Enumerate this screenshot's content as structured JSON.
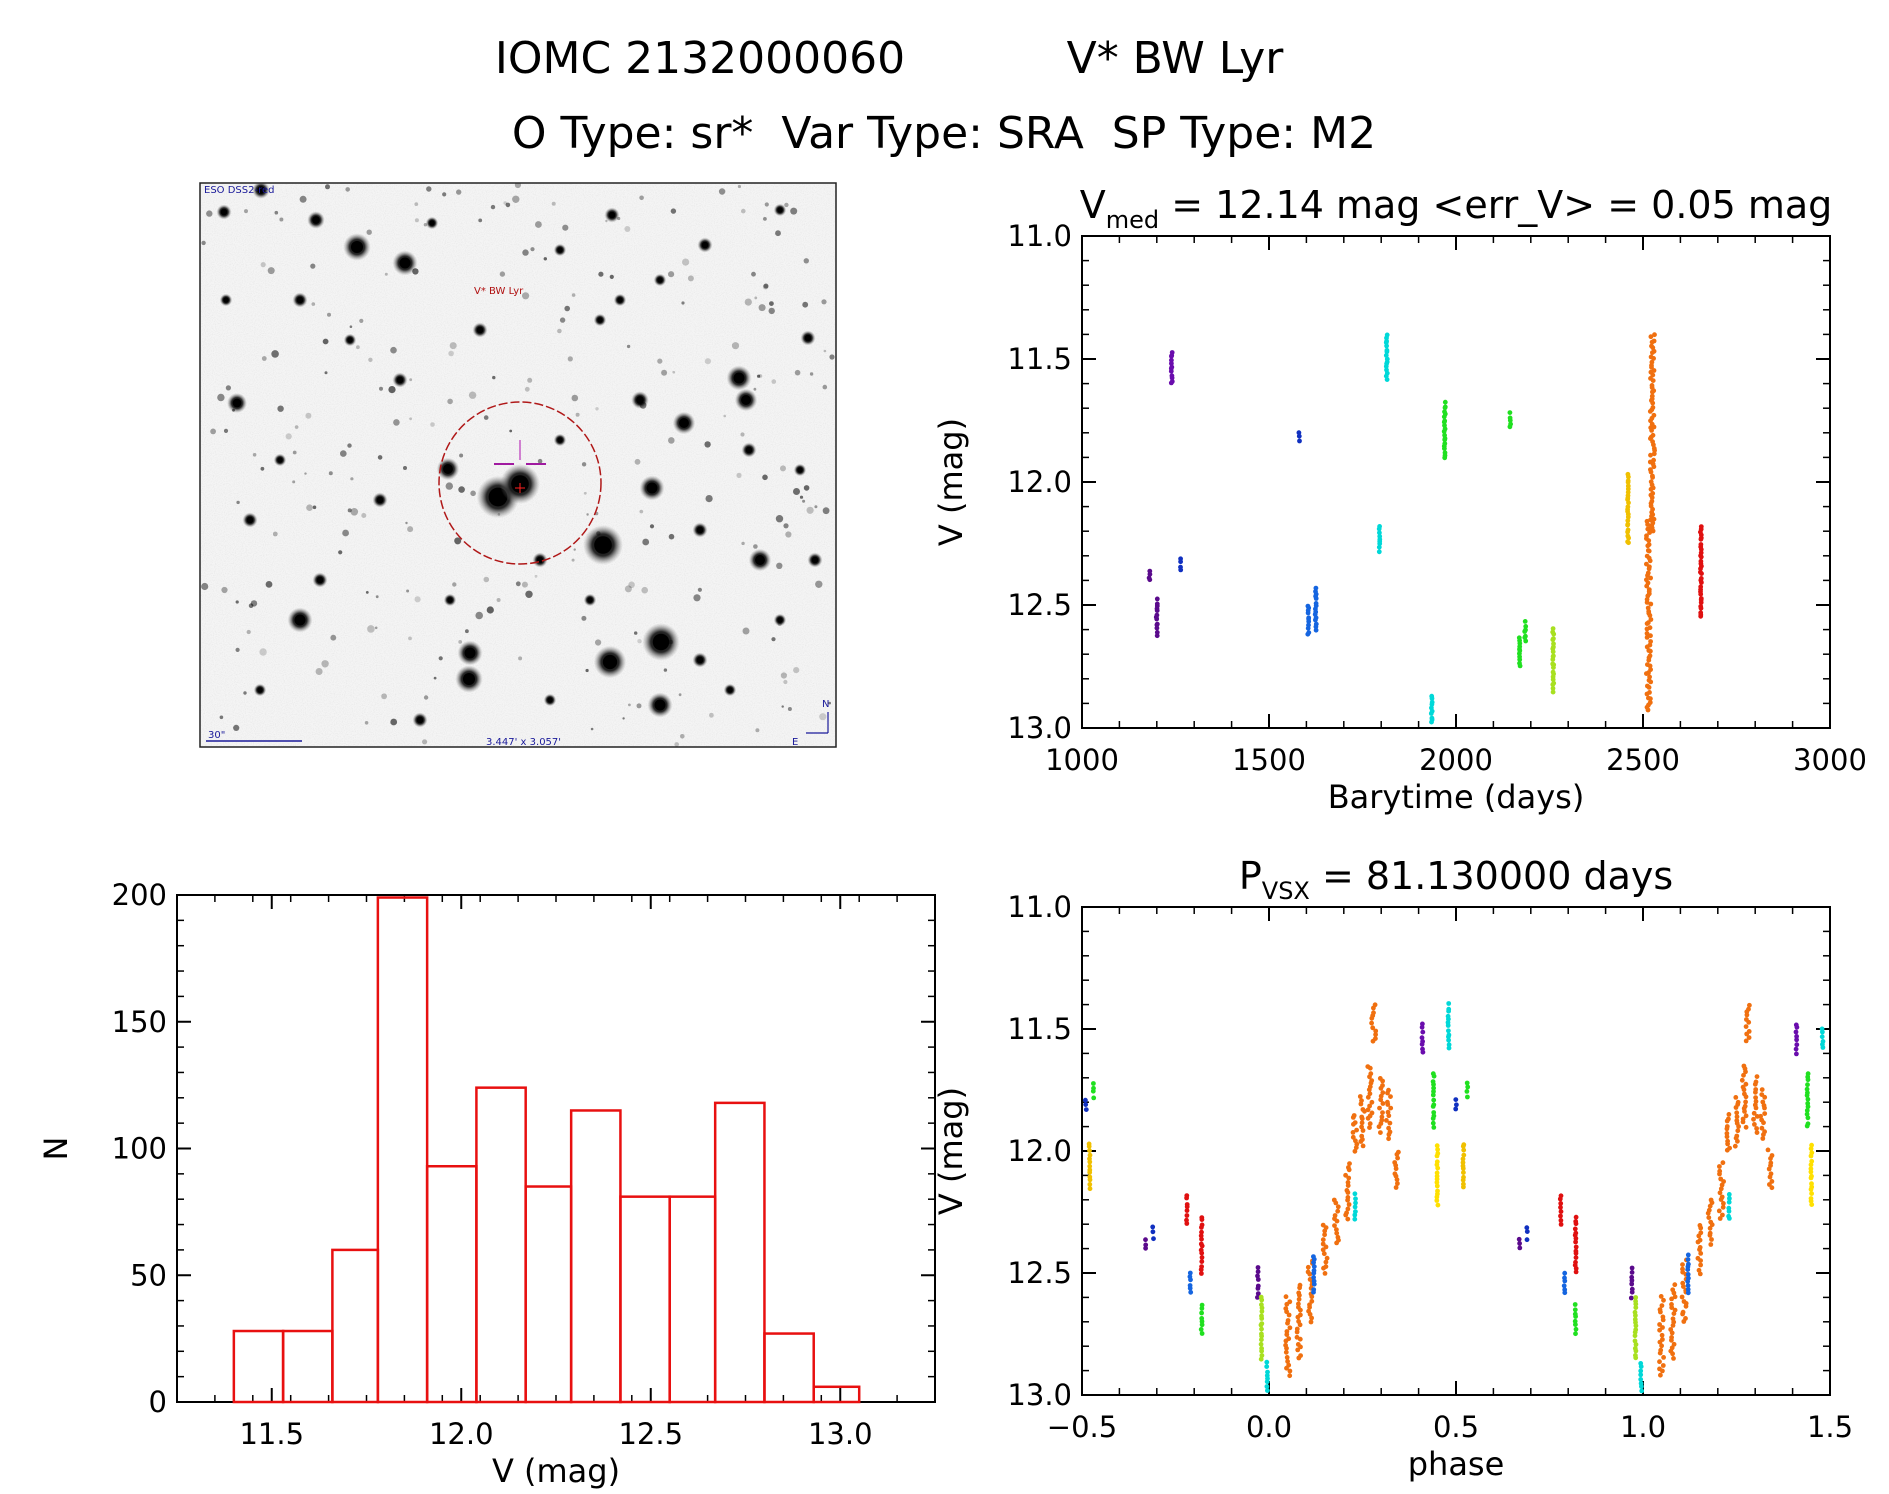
{
  "header": {
    "line1_left": "IOMC 2132000060",
    "line1_right": "V* BW Lyr",
    "line2": "O Type: sr*  Var Type: SRA  SP Type: M2"
  },
  "image_panel": {
    "survey_label": "ESO DSS2-red",
    "target_label": "V* BW Lyr",
    "scale_label": "30\"",
    "size_label": "3.447' x 3.057'",
    "north_label": "N",
    "east_label": "E"
  },
  "colors": {
    "purple": "#5a0a8c",
    "violet": "#6a0dad",
    "blue": "#1565e0",
    "darkblue": "#1030c0",
    "cyan": "#00d8d8",
    "green": "#20e020",
    "yellowgreen": "#a8e020",
    "yellow": "#ffe000",
    "gold": "#f0c000",
    "orange": "#f07010",
    "red": "#e01010",
    "hist": "#e81010"
  },
  "chart_data": [
    {
      "id": "lightcurve",
      "type": "scatter",
      "title_main": "V",
      "title_sub": "med",
      "title_rest": "= 12.14 mag <err_V> = 0.05 mag",
      "xlabel": "Barytime (days)",
      "ylabel": "V (mag)",
      "xlim": [
        1000,
        3000
      ],
      "ylim": [
        11.0,
        13.0
      ],
      "y_inverted": true,
      "x_ticks": [
        "1000",
        "1500",
        "2000",
        "2500",
        "3000"
      ],
      "y_ticks": [
        "11.0",
        "11.5",
        "12.0",
        "12.5",
        "13.0"
      ],
      "groups": [
        {
          "color": "purple",
          "x": 1180,
          "y": [
            12.36,
            12.4
          ]
        },
        {
          "color": "purple",
          "x": 1200,
          "y": [
            12.48,
            12.62
          ]
        },
        {
          "color": "violet",
          "x": 1240,
          "y": [
            11.47,
            11.6
          ]
        },
        {
          "color": "darkblue",
          "x": 1265,
          "y": [
            12.31,
            12.36
          ]
        },
        {
          "color": "darkblue",
          "x": 1580,
          "y": [
            11.8,
            11.83
          ]
        },
        {
          "color": "blue",
          "x": 1605,
          "y": [
            12.5,
            12.62
          ]
        },
        {
          "color": "blue",
          "x": 1625,
          "y": [
            12.43,
            12.6
          ]
        },
        {
          "color": "cyan",
          "x": 1795,
          "y": [
            12.18,
            12.28
          ]
        },
        {
          "color": "cyan",
          "x": 1815,
          "y": [
            11.4,
            11.58
          ]
        },
        {
          "color": "cyan",
          "x": 1935,
          "y": [
            12.87,
            12.98
          ]
        },
        {
          "color": "green",
          "x": 1970,
          "y": [
            11.68,
            11.9
          ]
        },
        {
          "color": "green",
          "x": 2145,
          "y": [
            11.72,
            11.78
          ]
        },
        {
          "color": "green",
          "x": 2170,
          "y": [
            12.63,
            12.75
          ]
        },
        {
          "color": "green",
          "x": 2185,
          "y": [
            12.57,
            12.65
          ]
        },
        {
          "color": "yellowgreen",
          "x": 2260,
          "y": [
            12.6,
            12.85
          ]
        },
        {
          "color": "gold",
          "x": 2460,
          "y": [
            11.97,
            12.25
          ]
        },
        {
          "color": "orange",
          "x": 2515,
          "y": [
            12.15,
            12.93
          ]
        },
        {
          "color": "orange",
          "x": 2525,
          "y": [
            11.4,
            12.2
          ]
        },
        {
          "color": "red",
          "x": 2655,
          "y": [
            12.18,
            12.55
          ]
        }
      ]
    },
    {
      "id": "histogram",
      "type": "bar",
      "xlabel": "V (mag)",
      "ylabel": "N",
      "xlim": [
        11.25,
        13.25
      ],
      "ylim": [
        0,
        200
      ],
      "x_ticks": [
        "11.5",
        "12.0",
        "12.5",
        "13.0"
      ],
      "y_ticks": [
        "0",
        "50",
        "100",
        "150",
        "200"
      ],
      "bin_edges": [
        11.4,
        11.53,
        11.66,
        11.78,
        11.91,
        12.04,
        12.17,
        12.29,
        12.42,
        12.55,
        12.67,
        12.8,
        12.93,
        13.05
      ],
      "values": [
        28,
        28,
        60,
        199,
        93,
        124,
        85,
        115,
        81,
        81,
        118,
        27,
        6
      ]
    },
    {
      "id": "phased",
      "type": "scatter",
      "title_main": "P",
      "title_sub": "VSX",
      "title_rest": "= 81.130000 days",
      "xlabel": "phase",
      "ylabel": "V (mag)",
      "xlim": [
        -0.5,
        1.5
      ],
      "ylim": [
        11.0,
        13.0
      ],
      "y_inverted": true,
      "x_ticks": [
        "−0.5",
        "0.0",
        "0.5",
        "1.0",
        "1.5"
      ],
      "y_ticks": [
        "11.0",
        "11.5",
        "12.0",
        "12.5",
        "13.0"
      ],
      "groups": [
        {
          "color": "darkblue",
          "x": -0.49,
          "y": [
            11.79,
            11.83
          ]
        },
        {
          "color": "green",
          "x": -0.47,
          "y": [
            11.72,
            11.78
          ]
        },
        {
          "color": "gold",
          "x": -0.48,
          "y": [
            11.97,
            12.15
          ]
        },
        {
          "color": "purple",
          "x": -0.33,
          "y": [
            12.36,
            12.4
          ]
        },
        {
          "color": "darkblue",
          "x": -0.31,
          "y": [
            12.31,
            12.36
          ]
        },
        {
          "color": "red",
          "x": -0.22,
          "y": [
            12.18,
            12.3
          ]
        },
        {
          "color": "blue",
          "x": -0.21,
          "y": [
            12.5,
            12.58
          ]
        },
        {
          "color": "red",
          "x": -0.18,
          "y": [
            12.27,
            12.5
          ]
        },
        {
          "color": "green",
          "x": -0.18,
          "y": [
            12.63,
            12.75
          ]
        },
        {
          "color": "purple",
          "x": -0.03,
          "y": [
            12.48,
            12.6
          ]
        },
        {
          "color": "yellowgreen",
          "x": -0.02,
          "y": [
            12.6,
            12.85
          ]
        },
        {
          "color": "cyan",
          "x": -0.005,
          "y": [
            12.87,
            12.98
          ]
        },
        {
          "color": "orange",
          "x": 0.05,
          "y": [
            12.6,
            12.92
          ]
        },
        {
          "color": "orange",
          "x": 0.08,
          "y": [
            12.55,
            12.85
          ]
        },
        {
          "color": "orange",
          "x": 0.11,
          "y": [
            12.45,
            12.7
          ]
        },
        {
          "color": "blue",
          "x": 0.12,
          "y": [
            12.43,
            12.58
          ]
        },
        {
          "color": "orange",
          "x": 0.15,
          "y": [
            12.3,
            12.5
          ]
        },
        {
          "color": "orange",
          "x": 0.18,
          "y": [
            12.2,
            12.38
          ]
        },
        {
          "color": "orange",
          "x": 0.21,
          "y": [
            12.05,
            12.28
          ]
        },
        {
          "color": "cyan",
          "x": 0.23,
          "y": [
            12.18,
            12.28
          ]
        },
        {
          "color": "orange",
          "x": 0.23,
          "y": [
            11.85,
            12.0
          ]
        },
        {
          "color": "orange",
          "x": 0.25,
          "y": [
            11.78,
            11.98
          ]
        },
        {
          "color": "orange",
          "x": 0.27,
          "y": [
            11.65,
            11.9
          ]
        },
        {
          "color": "orange",
          "x": 0.28,
          "y": [
            11.4,
            11.55
          ]
        },
        {
          "color": "orange",
          "x": 0.3,
          "y": [
            11.7,
            11.92
          ]
        },
        {
          "color": "orange",
          "x": 0.32,
          "y": [
            11.75,
            11.95
          ]
        },
        {
          "color": "orange",
          "x": 0.34,
          "y": [
            12.0,
            12.15
          ]
        },
        {
          "color": "violet",
          "x": 0.41,
          "y": [
            11.48,
            11.6
          ]
        },
        {
          "color": "green",
          "x": 0.44,
          "y": [
            11.68,
            11.9
          ]
        },
        {
          "color": "yellow",
          "x": 0.45,
          "y": [
            11.98,
            12.22
          ]
        },
        {
          "color": "cyan",
          "x": 0.48,
          "y": [
            11.4,
            11.58
          ]
        },
        {
          "color": "darkblue",
          "x": 0.5,
          "y": [
            11.79,
            11.83
          ]
        },
        {
          "color": "green",
          "x": 0.53,
          "y": [
            11.72,
            11.78
          ]
        },
        {
          "color": "gold",
          "x": 0.52,
          "y": [
            11.97,
            12.15
          ]
        },
        {
          "color": "purple",
          "x": 0.67,
          "y": [
            12.36,
            12.4
          ]
        },
        {
          "color": "darkblue",
          "x": 0.69,
          "y": [
            12.31,
            12.36
          ]
        },
        {
          "color": "red",
          "x": 0.78,
          "y": [
            12.18,
            12.3
          ]
        },
        {
          "color": "blue",
          "x": 0.79,
          "y": [
            12.5,
            12.58
          ]
        },
        {
          "color": "red",
          "x": 0.82,
          "y": [
            12.27,
            12.5
          ]
        },
        {
          "color": "green",
          "x": 0.82,
          "y": [
            12.63,
            12.75
          ]
        },
        {
          "color": "purple",
          "x": 0.97,
          "y": [
            12.48,
            12.6
          ]
        },
        {
          "color": "yellowgreen",
          "x": 0.98,
          "y": [
            12.6,
            12.85
          ]
        },
        {
          "color": "cyan",
          "x": 0.995,
          "y": [
            12.87,
            12.98
          ]
        },
        {
          "color": "orange",
          "x": 1.05,
          "y": [
            12.6,
            12.92
          ]
        },
        {
          "color": "orange",
          "x": 1.08,
          "y": [
            12.55,
            12.85
          ]
        },
        {
          "color": "orange",
          "x": 1.11,
          "y": [
            12.45,
            12.7
          ]
        },
        {
          "color": "blue",
          "x": 1.12,
          "y": [
            12.43,
            12.58
          ]
        },
        {
          "color": "orange",
          "x": 1.15,
          "y": [
            12.3,
            12.5
          ]
        },
        {
          "color": "orange",
          "x": 1.18,
          "y": [
            12.2,
            12.38
          ]
        },
        {
          "color": "orange",
          "x": 1.21,
          "y": [
            12.05,
            12.28
          ]
        },
        {
          "color": "cyan",
          "x": 1.23,
          "y": [
            12.18,
            12.28
          ]
        },
        {
          "color": "orange",
          "x": 1.23,
          "y": [
            11.85,
            12.0
          ]
        },
        {
          "color": "orange",
          "x": 1.25,
          "y": [
            11.78,
            11.98
          ]
        },
        {
          "color": "orange",
          "x": 1.27,
          "y": [
            11.65,
            11.9
          ]
        },
        {
          "color": "orange",
          "x": 1.28,
          "y": [
            11.4,
            11.55
          ]
        },
        {
          "color": "orange",
          "x": 1.3,
          "y": [
            11.7,
            11.92
          ]
        },
        {
          "color": "orange",
          "x": 1.32,
          "y": [
            11.75,
            11.95
          ]
        },
        {
          "color": "orange",
          "x": 1.34,
          "y": [
            12.0,
            12.15
          ]
        },
        {
          "color": "violet",
          "x": 1.41,
          "y": [
            11.48,
            11.6
          ]
        },
        {
          "color": "green",
          "x": 1.44,
          "y": [
            11.68,
            11.9
          ]
        },
        {
          "color": "yellow",
          "x": 1.45,
          "y": [
            11.98,
            12.22
          ]
        },
        {
          "color": "cyan",
          "x": 1.48,
          "y": [
            11.5,
            11.58
          ]
        }
      ]
    }
  ]
}
